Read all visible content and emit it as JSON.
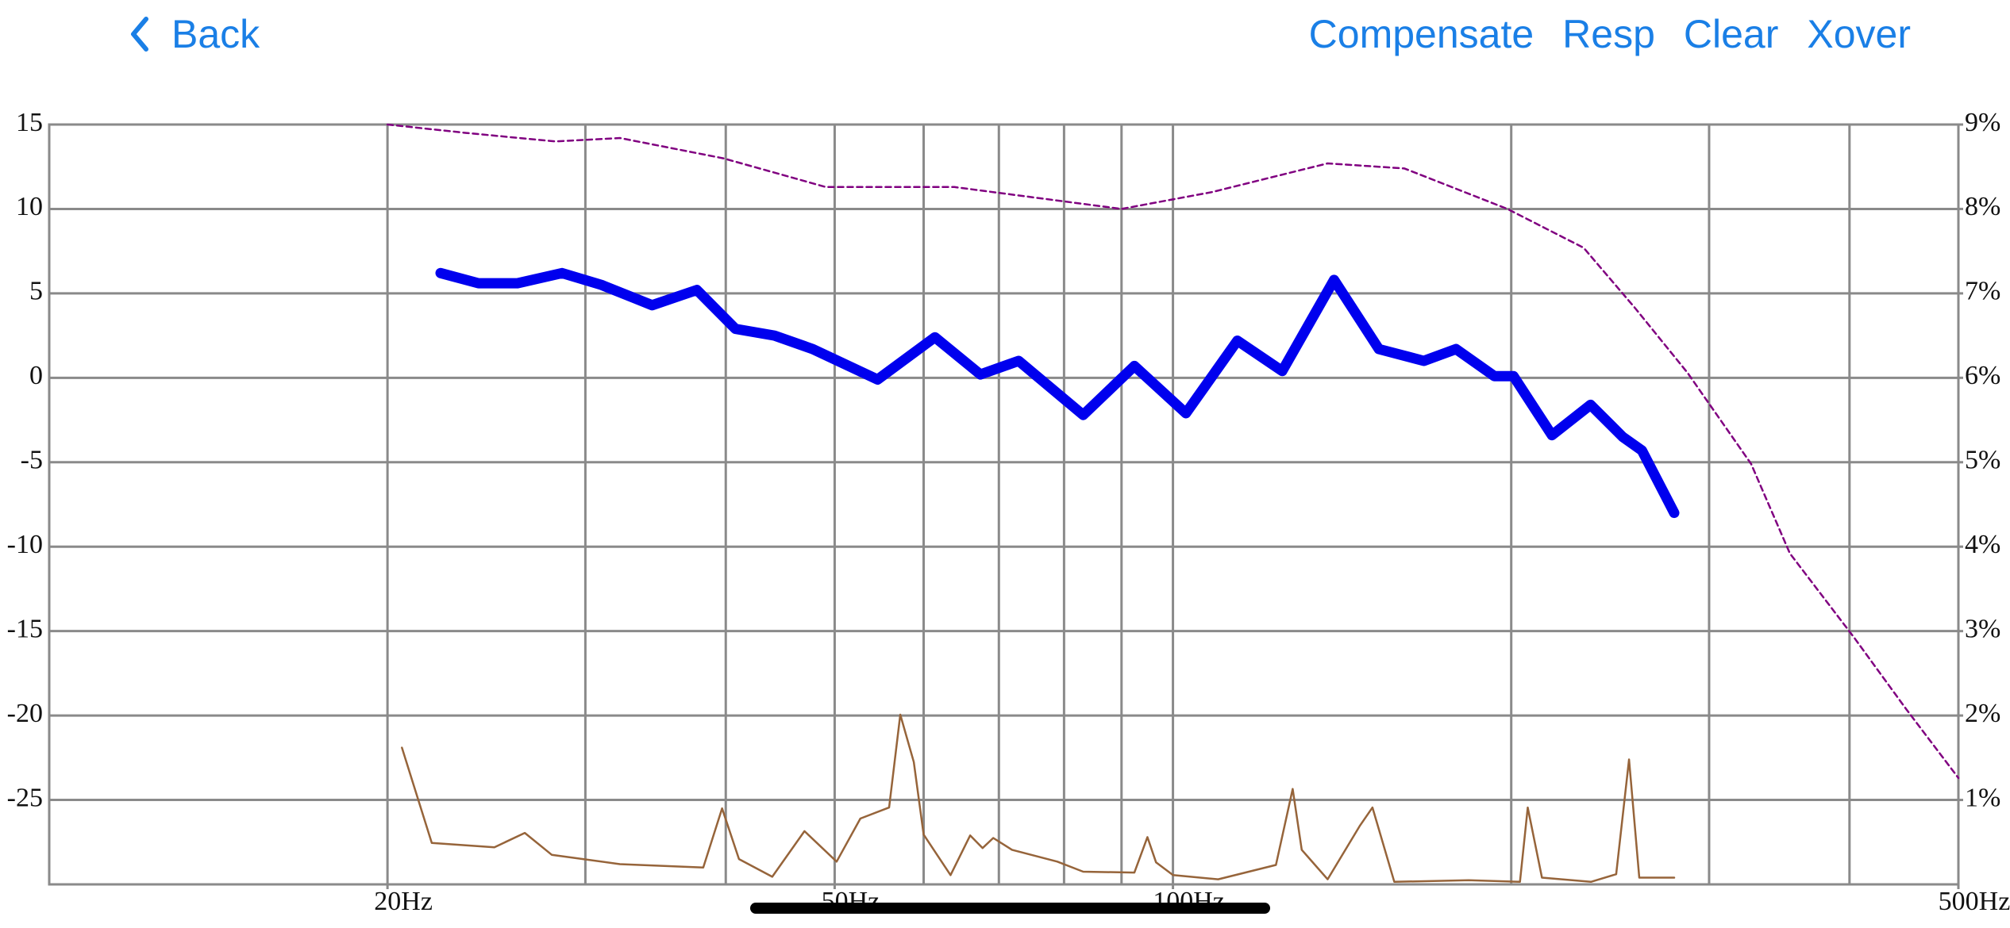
{
  "nav": {
    "back": "Back",
    "buttons": [
      "Compensate",
      "Resp",
      "Clear",
      "Xover"
    ]
  },
  "chart_data": {
    "type": "line",
    "xscale": "log",
    "xlim": [
      10,
      500
    ],
    "xgrid": [
      20,
      30,
      40,
      50,
      60,
      70,
      80,
      90,
      100,
      200,
      300,
      400
    ],
    "xticks": [
      {
        "value": 20,
        "label": "20Hz"
      },
      {
        "value": 50,
        "label": "50Hz"
      },
      {
        "value": 100,
        "label": "100Hz"
      },
      {
        "value": 500,
        "label": "500Hz"
      }
    ],
    "ylim": [
      -30,
      15
    ],
    "yticks": [
      15,
      10,
      5,
      0,
      -5,
      -10,
      -15,
      -20,
      -25
    ],
    "y2lim": [
      0,
      9
    ],
    "y2ticks": [
      {
        "value": 9,
        "label": "9%"
      },
      {
        "value": 8,
        "label": "8%"
      },
      {
        "value": 7,
        "label": "7%"
      },
      {
        "value": 6,
        "label": "6%"
      },
      {
        "value": 5,
        "label": "5%"
      },
      {
        "value": 4,
        "label": "4%"
      },
      {
        "value": 3,
        "label": "3%"
      },
      {
        "value": 2,
        "label": "2%"
      },
      {
        "value": 1,
        "label": "1%"
      }
    ],
    "grid": true,
    "series": [
      {
        "color": "#800080",
        "dashed": true,
        "width": 2.5,
        "x": [
          20,
          23.5,
          28.2,
          32.2,
          39.8,
          49.1,
          63.9,
          90,
          108.3,
          137.3,
          160.7,
          198.4,
          232,
          258,
          287,
          327,
          354,
          404,
          449,
          500
        ],
        "values": [
          15,
          14.5,
          14.0,
          14.2,
          13.0,
          11.3,
          11.3,
          10.0,
          11.0,
          12.7,
          12.4,
          10.0,
          7.7,
          4.1,
          0.3,
          -5.1,
          -10.4,
          -15.4,
          -19.6,
          -23.7
        ]
      },
      {
        "color": "#0000ee",
        "dashed": false,
        "width": 13,
        "x": [
          22.3,
          24.1,
          26.1,
          28.6,
          31.0,
          34.4,
          37.7,
          40.8,
          44.2,
          47.8,
          54.6,
          61.4,
          67.4,
          72.9,
          83.2,
          92.4,
          102.7,
          114.1,
          125.1,
          139.1,
          152.5,
          167.2,
          178.6,
          193.2,
          200.9,
          217.4,
          235.3,
          251.3,
          261.4,
          279.3
        ],
        "values": [
          6.2,
          5.6,
          5.6,
          6.2,
          5.5,
          4.3,
          5.2,
          2.9,
          2.5,
          1.7,
          -0.1,
          2.4,
          0.2,
          1.0,
          -2.2,
          0.7,
          -2.1,
          2.2,
          0.4,
          5.8,
          1.7,
          1.0,
          1.7,
          0.1,
          0.1,
          -3.4,
          -1.6,
          -3.5,
          -4.3,
          -8.0
        ]
      },
      {
        "color": "#96643a",
        "dashed": false,
        "width": 2.5,
        "axis": "y2",
        "x": [
          20.6,
          21.9,
          24.9,
          26.5,
          28.0,
          32.2,
          38.2,
          39.7,
          41.1,
          44.0,
          47.0,
          50.2,
          52.7,
          55.9,
          57.2,
          58.8,
          60.0,
          63.4,
          66.0,
          67.7,
          69.2,
          71.9,
          78.9,
          83.2,
          92.4,
          94.9,
          96.6,
          100,
          109.7,
          123.5,
          127.8,
          130.2,
          137.3,
          146.6,
          150.5,
          157.4,
          183.3,
          203.6,
          206.9,
          213.0,
          235.5,
          248.0,
          254.6,
          260.0,
          279.3
        ],
        "values": [
          1.62,
          0.49,
          0.44,
          0.61,
          0.35,
          0.24,
          0.2,
          0.9,
          0.3,
          0.09,
          0.63,
          0.27,
          0.78,
          0.91,
          2.01,
          1.45,
          0.59,
          0.11,
          0.58,
          0.43,
          0.55,
          0.41,
          0.27,
          0.15,
          0.14,
          0.56,
          0.26,
          0.11,
          0.06,
          0.23,
          1.13,
          0.41,
          0.06,
          0.69,
          0.91,
          0.03,
          0.05,
          0.03,
          0.91,
          0.08,
          0.03,
          0.12,
          1.48,
          0.08,
          0.08
        ]
      }
    ]
  }
}
